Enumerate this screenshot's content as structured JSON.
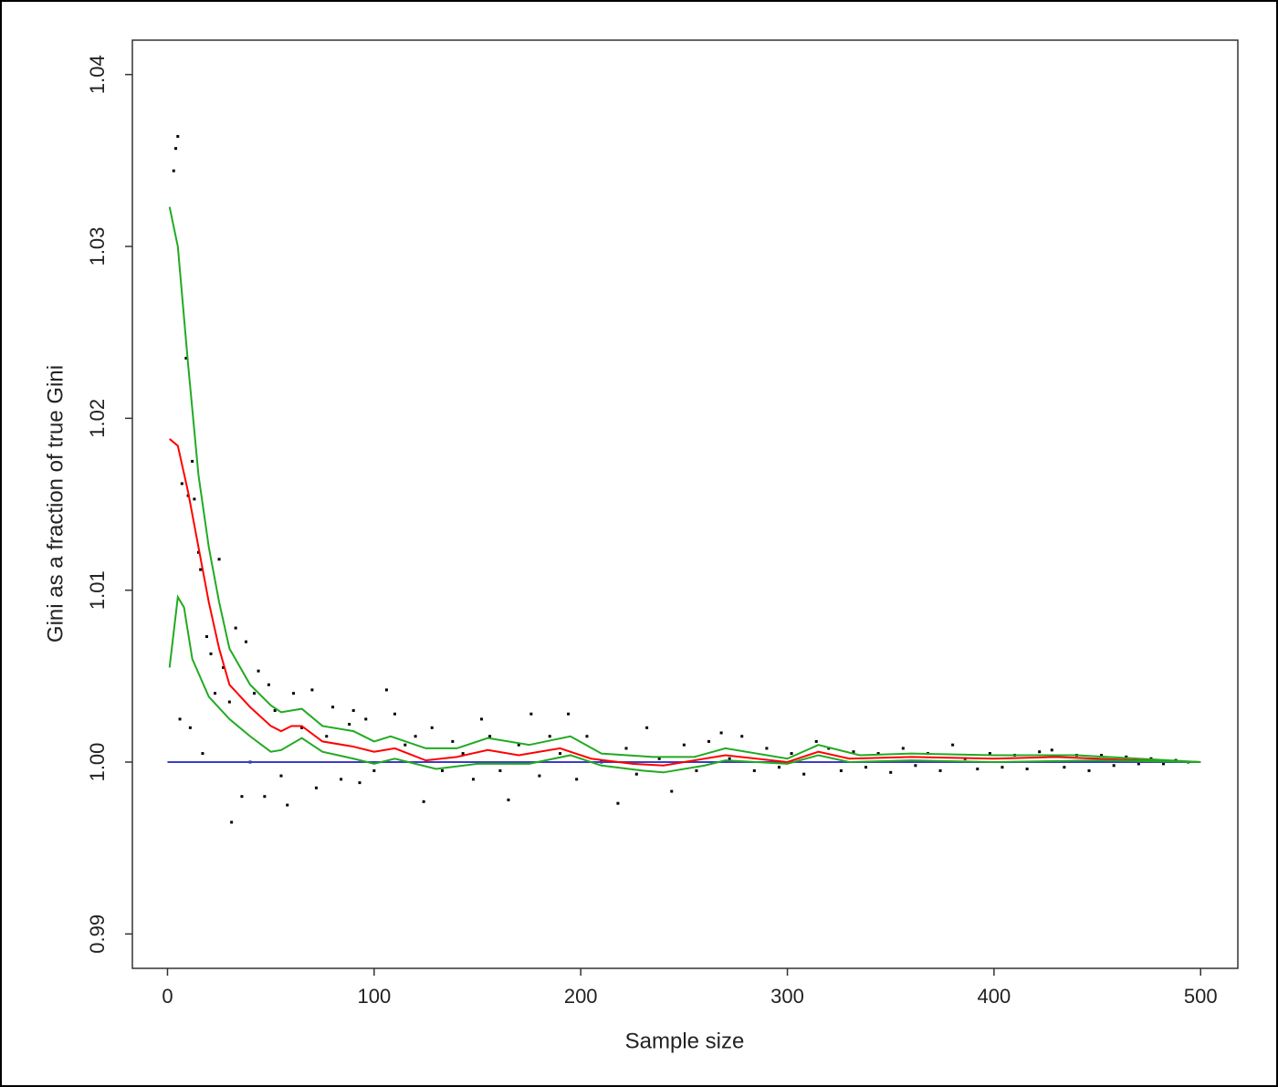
{
  "chart_data": {
    "type": "scatter",
    "xlabel": "Sample size",
    "ylabel": "Gini as a fraction of true Gini",
    "xlim": [
      -17,
      518
    ],
    "ylim": [
      0.988,
      1.042
    ],
    "xticks": [
      0,
      100,
      200,
      300,
      400,
      500
    ],
    "yticks": [
      0.99,
      {
        "value": 1,
        "label": "1.00"
      },
      1.01,
      1.02,
      1.03,
      1.04
    ],
    "series": [
      {
        "type": "scatter",
        "color": "#000000",
        "x": [
          3,
          4,
          5,
          7,
          9,
          10,
          11,
          12,
          13,
          15,
          16,
          17,
          6,
          19,
          21,
          23,
          25,
          27,
          30,
          31,
          33,
          36,
          38,
          40,
          42,
          44,
          47,
          49,
          52,
          55,
          58,
          61,
          65,
          70,
          72,
          77,
          80,
          84,
          88,
          90,
          93,
          96,
          100,
          106,
          110,
          115,
          120,
          124,
          128,
          133,
          138,
          143,
          148,
          152,
          156,
          161,
          165,
          170,
          176,
          180,
          185,
          190,
          194,
          198,
          203,
          210,
          218,
          222,
          227,
          232,
          238,
          244,
          250,
          256,
          262,
          268,
          272,
          278,
          284,
          290,
          296,
          302,
          308,
          314,
          320,
          326,
          332,
          338,
          344,
          350,
          356,
          362,
          368,
          374,
          380,
          386,
          392,
          398,
          404,
          410,
          416,
          422,
          428,
          434,
          440,
          446,
          452,
          458,
          464,
          470,
          476,
          482,
          488,
          494
        ],
        "values": [
          1.0344,
          1.0357,
          1.0364,
          1.0162,
          1.0235,
          1.0155,
          1.002,
          1.0175,
          1.0153,
          1.0122,
          1.0112,
          1.0005,
          1.0025,
          1.0073,
          1.0063,
          1.004,
          1.0118,
          1.0055,
          1.0035,
          0.9965,
          1.0078,
          0.998,
          1.007,
          1.0,
          1.004,
          1.0053,
          0.998,
          1.0045,
          1.003,
          0.9992,
          0.9975,
          1.004,
          1.002,
          1.0042,
          0.9985,
          1.0015,
          1.0032,
          0.999,
          1.0022,
          1.003,
          0.9988,
          1.0025,
          0.9995,
          1.0042,
          1.0028,
          1.001,
          1.0015,
          0.9977,
          1.002,
          0.9995,
          1.0012,
          1.0005,
          0.999,
          1.0025,
          1.0015,
          0.9995,
          0.9978,
          1.001,
          1.0028,
          0.9992,
          1.0015,
          1.0005,
          1.0028,
          0.999,
          1.0015,
          1.0,
          0.9976,
          1.0008,
          0.9993,
          1.002,
          1.0002,
          0.9983,
          1.001,
          0.9995,
          1.0012,
          1.0017,
          1.0002,
          1.0015,
          0.9995,
          1.0008,
          0.9997,
          1.0005,
          0.9993,
          1.0012,
          1.0008,
          0.9995,
          1.0006,
          0.9997,
          1.0005,
          0.9994,
          1.0008,
          0.9998,
          1.0005,
          0.9995,
          1.001,
          1.0002,
          0.9996,
          1.0005,
          0.9997,
          1.0004,
          0.9996,
          1.0006,
          1.0007,
          0.9997,
          1.0004,
          0.9995,
          1.0004,
          0.9998,
          1.0003,
          0.9999,
          1.0002,
          0.9999,
          1.0001,
          1.0
        ]
      },
      {
        "type": "line",
        "color": "#3c3cc8",
        "x": [
          0,
          500
        ],
        "values": [
          1,
          1
        ]
      },
      {
        "type": "line",
        "color": "#ff0000",
        "x": [
          1,
          5,
          10,
          15,
          20,
          25,
          30,
          40,
          50,
          55,
          60,
          65,
          75,
          90,
          100,
          110,
          125,
          140,
          155,
          170,
          190,
          205,
          225,
          240,
          255,
          270,
          300,
          315,
          330,
          360,
          400,
          430,
          470,
          500
        ],
        "values": [
          1.0188,
          1.0184,
          1.0157,
          1.0125,
          1.0093,
          1.0066,
          1.0045,
          1.0032,
          1.0021,
          1.0018,
          1.0021,
          1.0021,
          1.0012,
          1.0009,
          1.0006,
          1.0008,
          1.0001,
          1.0003,
          1.0007,
          1.0004,
          1.0008,
          1.0002,
          0.9999,
          0.9998,
          1.0001,
          1.0004,
          1.0,
          1.0006,
          1.0002,
          1.0003,
          1.0002,
          1.0003,
          1.0001,
          1.0
        ]
      },
      {
        "type": "line",
        "color": "#22aa22",
        "x": [
          1,
          5,
          10,
          15,
          20,
          25,
          30,
          40,
          50,
          55,
          65,
          75,
          90,
          100,
          108,
          125,
          140,
          155,
          175,
          195,
          210,
          235,
          255,
          270,
          300,
          315,
          335,
          360,
          400,
          440,
          470,
          500
        ],
        "values": [
          1.0323,
          1.03,
          1.0231,
          1.0167,
          1.0125,
          1.0093,
          1.0066,
          1.0045,
          1.0033,
          1.0029,
          1.0031,
          1.0021,
          1.0018,
          1.0012,
          1.0015,
          1.0008,
          1.0008,
          1.0014,
          1.001,
          1.0015,
          1.0005,
          1.0003,
          1.0003,
          1.0008,
          1.0002,
          1.001,
          1.0004,
          1.0005,
          1.0004,
          1.0004,
          1.0002,
          1.0
        ]
      },
      {
        "type": "line",
        "color": "#22aa22",
        "x": [
          1,
          5,
          8,
          12,
          20,
          30,
          40,
          50,
          55,
          65,
          75,
          90,
          100,
          110,
          130,
          150,
          175,
          195,
          210,
          230,
          240,
          260,
          270,
          300,
          315,
          330,
          360,
          400,
          450,
          500
        ],
        "values": [
          1.0055,
          1.0096,
          1.009,
          1.006,
          1.0038,
          1.0025,
          1.0015,
          1.0006,
          1.0007,
          1.0014,
          1.0006,
          1.0002,
          0.9999,
          1.0002,
          0.9996,
          0.9999,
          0.9999,
          1.0004,
          0.9998,
          0.9995,
          0.9994,
          0.9998,
          1.0001,
          0.9999,
          1.0004,
          1.0,
          1.0001,
          1.0,
          1.0001,
          1.0
        ]
      }
    ]
  }
}
